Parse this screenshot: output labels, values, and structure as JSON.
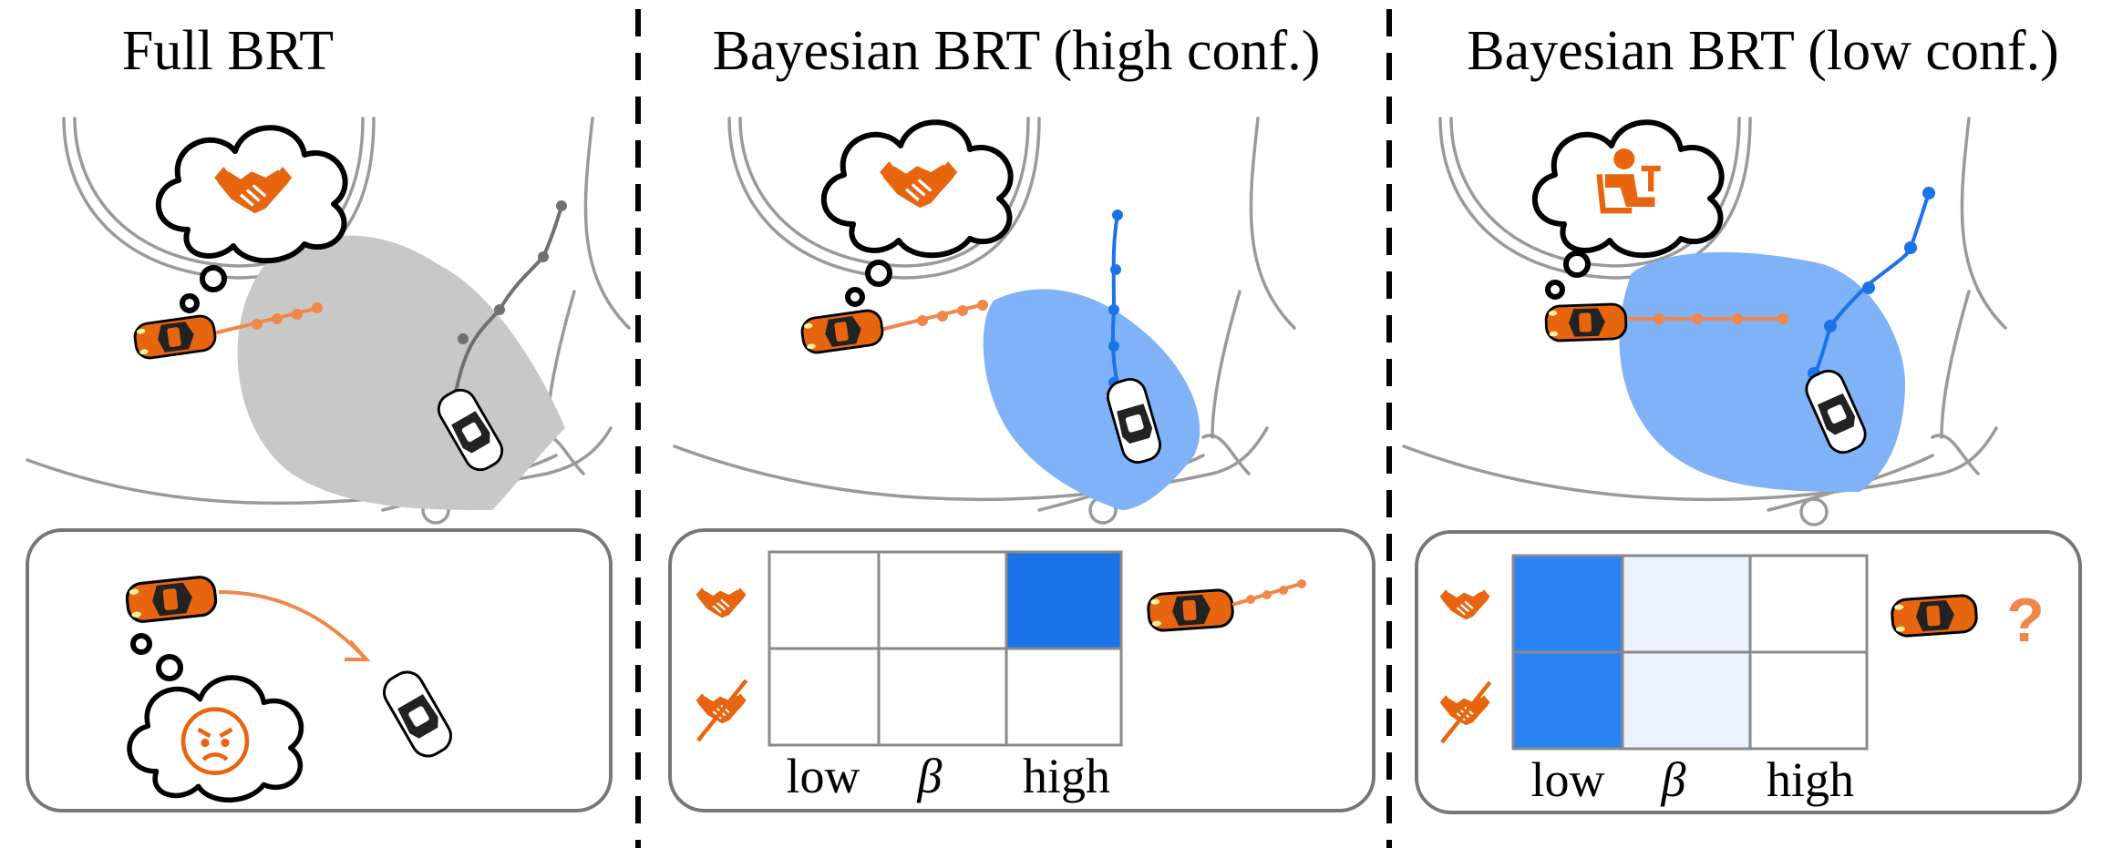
{
  "panels": [
    {
      "title": "Full BRT",
      "brt_color": "#c8c8c8",
      "robot_traj_color": "#707070",
      "thought_icon": "handshake-icon",
      "inset_thought_icon": "angry-face-icon"
    },
    {
      "title": "Bayesian BRT (high conf.)",
      "brt_color": "#7fb2f7",
      "robot_traj_color": "#1a73e8",
      "thought_icon": "handshake-icon",
      "belief_grid": {
        "rows": [
          "handshake-icon",
          "no-handshake-icon"
        ],
        "columns_label_low": "low",
        "columns_label_beta": "β",
        "columns_label_high": "high",
        "shading": [
          [
            0,
            0,
            1.0
          ],
          [
            0,
            0,
            0
          ]
        ]
      }
    },
    {
      "title": "Bayesian BRT (low conf.)",
      "brt_color": "#7fb2f7",
      "robot_traj_color": "#1a73e8",
      "thought_icon": "driver-at-work-icon",
      "belief_grid": {
        "rows": [
          "handshake-icon",
          "no-handshake-icon"
        ],
        "columns_label_low": "low",
        "columns_label_beta": "β",
        "columns_label_high": "high",
        "shading": [
          [
            1.0,
            0.1,
            0
          ],
          [
            1.0,
            0.1,
            0
          ]
        ]
      },
      "uncertainty_mark": "?"
    }
  ],
  "colors": {
    "human_car": "#e8650f",
    "human_traj": "#f0874a",
    "grid_full": "#1a73e8",
    "grid_light": "#eaf2fd",
    "robot_car": "#ffffff"
  }
}
